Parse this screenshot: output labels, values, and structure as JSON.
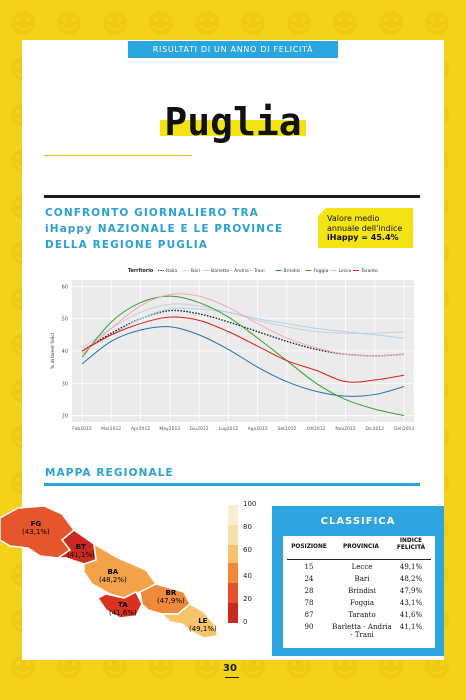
{
  "header": {
    "banner": "RISULTATI DI UN ANNO DI FELICITÀ"
  },
  "region_title": "Puglia",
  "section1": {
    "heading_lines": [
      "CONFRONTO GIORNALIERO TRA",
      "iHappy NAZIONALE E LE PROVINCE",
      "DELLA REGIONE PUGLIA"
    ],
    "callout_lines": [
      "Valore medio",
      "annuale dell'indice",
      "iHappy = 45.4%"
    ]
  },
  "chart_data": {
    "type": "line",
    "legend_title": "Territorio",
    "legend_position": "top",
    "ylabel": "% di tweet felici",
    "xlabel": "",
    "x": [
      "Feb2012",
      "Mar2012",
      "Apr2012",
      "May2012",
      "Giu2012",
      "Lug2012",
      "Ago2012",
      "Set2012",
      "Ott2012",
      "Nov2012",
      "Dic2012",
      "Gen2013"
    ],
    "ylim": [
      18,
      62
    ],
    "yticks": [
      20,
      30,
      40,
      50,
      60
    ],
    "grid": true,
    "series": [
      {
        "name": "Italia",
        "color": "#111111",
        "dashed": true,
        "values": [
          40,
          45.5,
          50,
          52.5,
          51.5,
          49,
          46,
          43,
          40.5,
          39,
          38.5,
          39
        ]
      },
      {
        "name": "Bari",
        "color": "#c9cfd6",
        "values": [
          41,
          47,
          52,
          54.5,
          54,
          52,
          49.5,
          47.5,
          46,
          45.5,
          45.5,
          46
        ]
      },
      {
        "name": "Barletta – Andria – Trani",
        "color": "#aed3e8",
        "values": [
          40,
          45,
          50,
          53,
          53,
          52,
          50,
          48.5,
          47,
          46,
          45,
          44
        ]
      },
      {
        "name": "Brindisi",
        "color": "#2171b5",
        "values": [
          36,
          43,
          46.5,
          47.5,
          45,
          40.5,
          35,
          30.5,
          27.5,
          26,
          26.5,
          29
        ]
      },
      {
        "name": "Foggia",
        "color": "#33a02c",
        "values": [
          38,
          49,
          55,
          57,
          55,
          50.5,
          44,
          37,
          30,
          25,
          22,
          20
        ]
      },
      {
        "name": "Lecce",
        "color": "#f4a9b8",
        "values": [
          39,
          47,
          54,
          57.5,
          57,
          53.5,
          48.5,
          44,
          41,
          39,
          38.5,
          39
        ]
      },
      {
        "name": "Taranto",
        "color": "#e31a1c",
        "values": [
          40,
          45,
          48.5,
          50.5,
          49.5,
          46,
          41.5,
          37,
          34,
          30.5,
          31,
          32.5
        ]
      }
    ]
  },
  "section2": {
    "heading": "MAPPA REGIONALE"
  },
  "map": {
    "provinces": [
      {
        "code": "FG",
        "value": "(43,1%)",
        "color": "#e6562b"
      },
      {
        "code": "BT",
        "value": "(41,1%)",
        "color": "#c92a1d"
      },
      {
        "code": "BA",
        "value": "(48,2%)",
        "color": "#f3a24a"
      },
      {
        "code": "TA",
        "value": "(41,6%)",
        "color": "#d8311f"
      },
      {
        "code": "BR",
        "value": "(47,9%)",
        "color": "#ee8a3a"
      },
      {
        "code": "LE",
        "value": "(49,1%)",
        "color": "#f7c46c"
      }
    ],
    "legend_ticks": [
      "100",
      "80",
      "60",
      "40",
      "20",
      "0"
    ],
    "legend_colors": [
      "#fbeed0",
      "#f9e0ac",
      "#f5c26b",
      "#ef8a3a",
      "#e5512b",
      "#c92a1d"
    ]
  },
  "classifica": {
    "title": "CLASSIFICA",
    "headers": [
      "POSIZIONE",
      "PROVINCIA",
      "INDICE FELICITÀ"
    ],
    "rows": [
      [
        "15",
        "Lecce",
        "49,1%"
      ],
      [
        "24",
        "Bari",
        "48,2%"
      ],
      [
        "28",
        "Brindisi",
        "47,9%"
      ],
      [
        "78",
        "Foggia",
        "43,1%"
      ],
      [
        "87",
        "Taranto",
        "41,6%"
      ],
      [
        "90",
        "Barletta - Andria - Trani",
        "41,1%"
      ]
    ]
  },
  "footer": {
    "page_number": "30"
  },
  "colors": {
    "accent_blue": "#29a6df",
    "background_yellow": "#f5d21a",
    "highlight_yellow": "#f3e313"
  }
}
